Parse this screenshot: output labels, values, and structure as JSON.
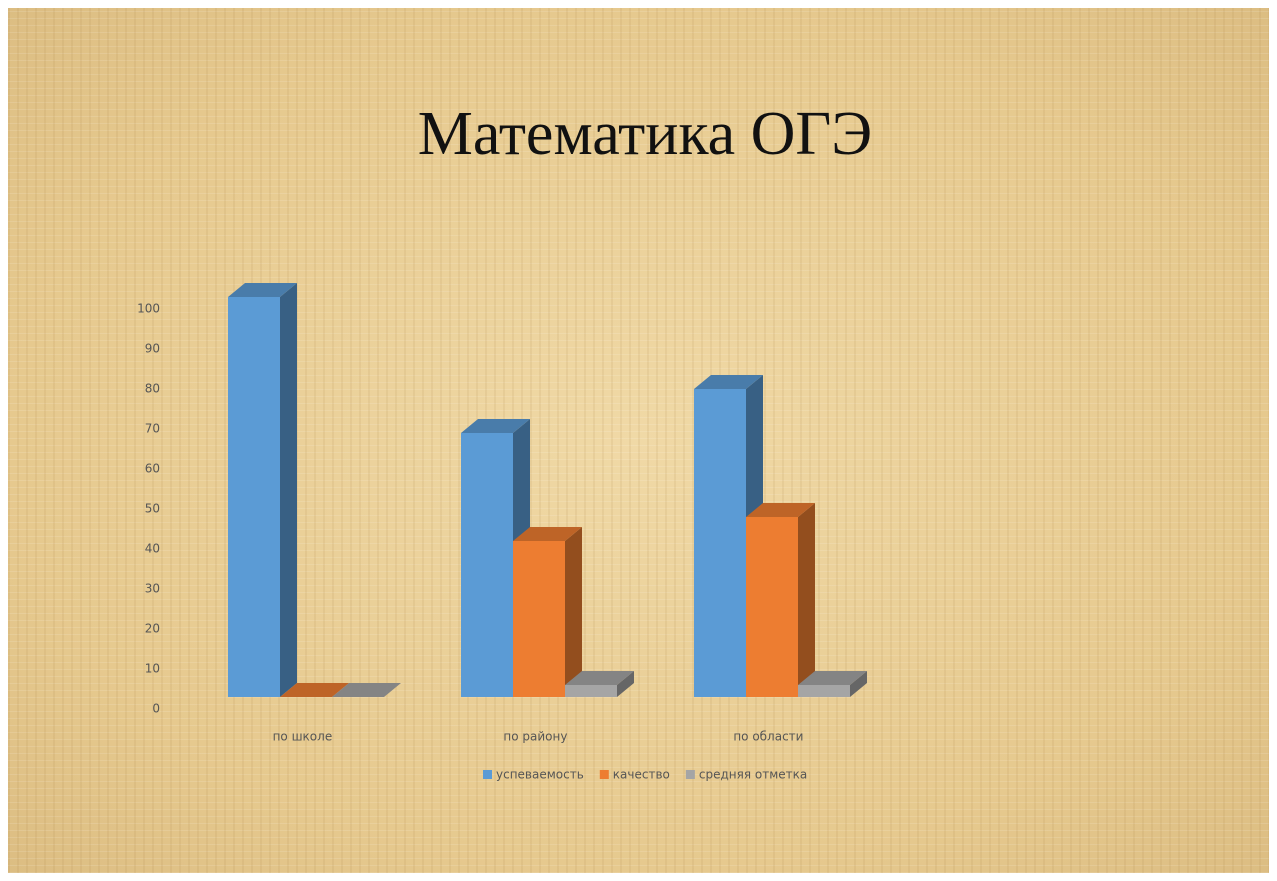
{
  "chart_data": {
    "type": "bar3d",
    "title": "Математика ОГЭ",
    "categories": [
      "по школе",
      "по району",
      "по области"
    ],
    "series": [
      {
        "name": "успеваемость",
        "color": "#5b9bd5",
        "values": [
          100,
          66,
          77
        ]
      },
      {
        "name": "качество",
        "color": "#ed7d31",
        "values": [
          0,
          39,
          45
        ]
      },
      {
        "name": "средняя отметка",
        "color": "#a5a5a5",
        "values": [
          0,
          3,
          3
        ]
      }
    ],
    "ylim": [
      0,
      100
    ],
    "yticks": [
      0,
      10,
      20,
      30,
      40,
      50,
      60,
      70,
      80,
      90,
      100
    ],
    "legend": "bottom"
  }
}
